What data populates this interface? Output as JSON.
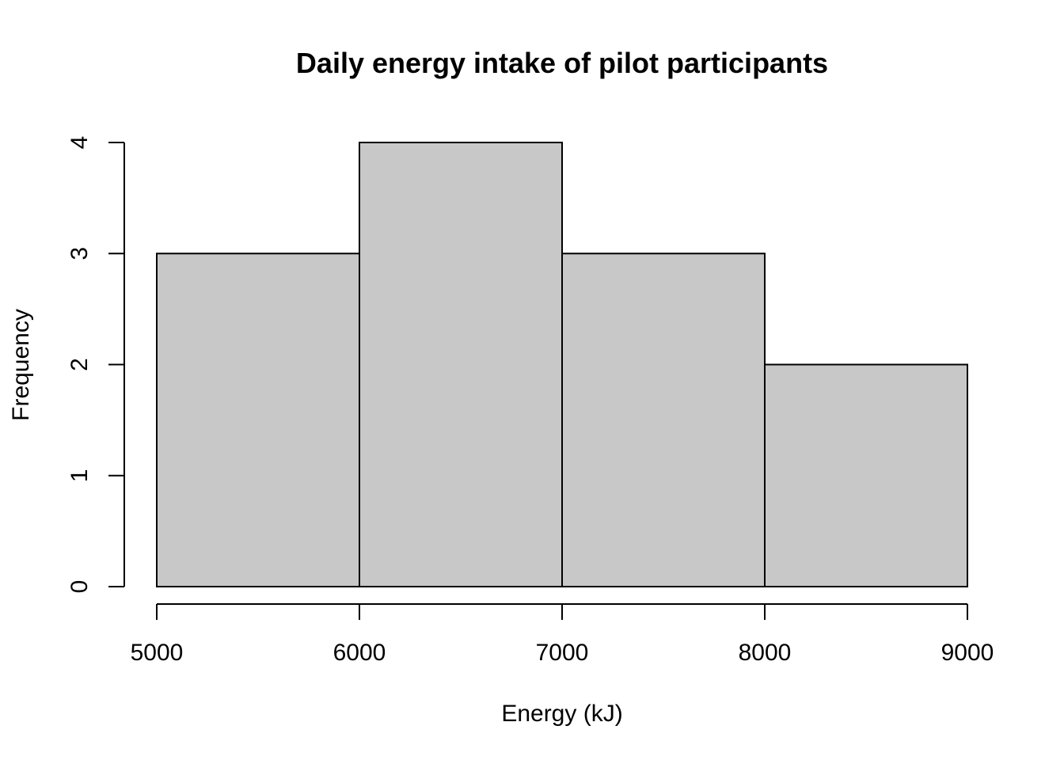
{
  "chart_data": {
    "type": "bar",
    "subtype": "histogram",
    "title": "Daily energy intake of pilot participants",
    "xlabel": "Energy (kJ)",
    "ylabel": "Frequency",
    "bins": [
      {
        "start": 5000,
        "end": 6000,
        "count": 3
      },
      {
        "start": 6000,
        "end": 7000,
        "count": 4
      },
      {
        "start": 7000,
        "end": 8000,
        "count": 3
      },
      {
        "start": 8000,
        "end": 9000,
        "count": 2
      }
    ],
    "x_ticks": [
      5000,
      6000,
      7000,
      8000,
      9000
    ],
    "y_ticks": [
      0,
      1,
      2,
      3,
      4
    ],
    "xlim": [
      5000,
      9000
    ],
    "ylim": [
      0,
      4
    ],
    "grid": false,
    "legend": "none",
    "bar_color": "#c8c8c8",
    "edge_color": "#000000"
  }
}
